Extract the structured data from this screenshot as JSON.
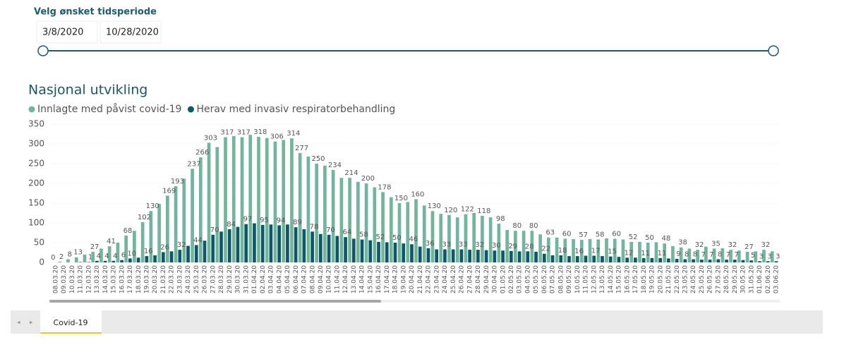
{
  "slicer": {
    "title": "Velg ønsket tidsperiode",
    "start": "3/8/2020",
    "end": "10/28/2020"
  },
  "tabs": [
    "Covid-19"
  ],
  "chart_data": {
    "type": "bar",
    "title": "Nasjonal utvikling",
    "categories": [
      "08.03.20",
      "09.03.20",
      "10.03.20",
      "11.03.20",
      "12.03.20",
      "13.03.20",
      "14.03.20",
      "15.03.20",
      "16.03.20",
      "17.03.20",
      "18.03.20",
      "19.03.20",
      "20.03.20",
      "21.03.20",
      "22.03.20",
      "23.03.20",
      "24.03.20",
      "25.03.20",
      "26.03.20",
      "27.03.20",
      "28.03.20",
      "29.03.20",
      "30.03.20",
      "31.03.20",
      "01.04.20",
      "02.04.20",
      "03.04.20",
      "04.04.20",
      "05.04.20",
      "06.04.20",
      "07.04.20",
      "08.04.20",
      "09.04.20",
      "10.04.20",
      "11.04.20",
      "12.04.20",
      "13.04.20",
      "14.04.20",
      "15.04.20",
      "16.04.20",
      "17.04.20",
      "18.04.20",
      "19.04.20",
      "20.04.20",
      "21.04.20",
      "22.04.20",
      "23.04.20",
      "24.04.20",
      "25.04.20",
      "26.04.20",
      "27.04.20",
      "28.04.20",
      "29.04.20",
      "30.04.20",
      "01.05.20",
      "02.05.20",
      "03.05.20",
      "04.05.20",
      "05.05.20",
      "06.05.20",
      "07.05.20",
      "08.05.20",
      "09.05.20",
      "10.05.20",
      "11.05.20",
      "12.05.20",
      "13.05.20",
      "14.05.20",
      "15.05.20",
      "16.05.20",
      "17.05.20",
      "18.05.20",
      "19.05.20",
      "20.05.20",
      "21.05.20",
      "22.05.20",
      "23.05.20",
      "24.05.20",
      "25.05.20",
      "26.05.20",
      "27.05.20",
      "28.05.20",
      "29.05.20",
      "30.05.20",
      "31.05.20",
      "01.06.20",
      "02.06.20",
      "03.06.20"
    ],
    "series": [
      {
        "name": "Innlagte med påvist covid-19",
        "color": "#72b59c",
        "values": [
          0,
          2,
          8,
          13,
          20,
          27,
          35,
          41,
          50,
          68,
          80,
          102,
          130,
          148,
          169,
          193,
          212,
          237,
          266,
          303,
          292,
          317,
          320,
          317,
          323,
          318,
          315,
          306,
          310,
          314,
          277,
          268,
          250,
          245,
          234,
          214,
          214,
          204,
          200,
          190,
          178,
          165,
          150,
          153,
          160,
          144,
          130,
          123,
          120,
          114,
          122,
          125,
          118,
          114,
          98,
          82,
          80,
          80,
          80,
          71,
          63,
          63,
          60,
          59,
          57,
          59,
          58,
          61,
          60,
          58,
          52,
          52,
          50,
          51,
          48,
          41,
          38,
          35,
          32,
          40,
          35,
          36,
          32,
          30,
          27,
          28,
          32,
          28
        ]
      },
      {
        "name": "Herav med invasiv respiratorbehandling",
        "color": "#0c5866",
        "values": [
          0,
          0,
          0,
          1,
          1,
          4,
          4,
          4,
          6,
          10,
          12,
          16,
          18,
          26,
          28,
          32,
          42,
          44,
          55,
          70,
          78,
          84,
          90,
          97,
          99,
          95,
          96,
          94,
          96,
          89,
          84,
          78,
          72,
          70,
          67,
          64,
          60,
          58,
          56,
          52,
          51,
          50,
          48,
          46,
          40,
          36,
          33,
          33,
          33,
          33,
          32,
          32,
          31,
          30,
          30,
          29,
          28,
          28,
          27,
          22,
          18,
          18,
          16,
          16,
          17,
          17,
          16,
          15,
          14,
          12,
          12,
          11,
          11,
          11,
          10,
          9,
          8,
          8,
          7,
          7,
          8,
          7,
          7,
          6,
          5,
          3,
          3,
          3
        ]
      }
    ],
    "ylim": [
      0,
      350
    ],
    "yticks": [
      0,
      50,
      100,
      150,
      200,
      250,
      300,
      350
    ],
    "grid": true,
    "data_labels": true
  }
}
